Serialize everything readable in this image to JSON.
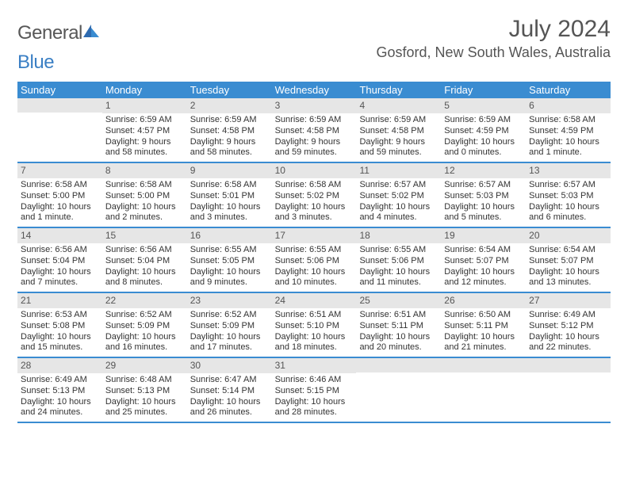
{
  "logo": {
    "text1": "General",
    "text2": "Blue"
  },
  "header": {
    "month_title": "July 2024",
    "location": "Gosford, New South Wales, Australia"
  },
  "colors": {
    "accent": "#3a8cd1",
    "header_text": "#ffffff",
    "date_bar": "#e6e6e6",
    "body_text": "#333333",
    "title_text": "#555555"
  },
  "weekdays": [
    "Sunday",
    "Monday",
    "Tuesday",
    "Wednesday",
    "Thursday",
    "Friday",
    "Saturday"
  ],
  "weeks": [
    [
      {
        "num": "",
        "sunrise": "",
        "sunset": "",
        "day1": "",
        "day2": ""
      },
      {
        "num": "1",
        "sunrise": "Sunrise: 6:59 AM",
        "sunset": "Sunset: 4:57 PM",
        "day1": "Daylight: 9 hours",
        "day2": "and 58 minutes."
      },
      {
        "num": "2",
        "sunrise": "Sunrise: 6:59 AM",
        "sunset": "Sunset: 4:58 PM",
        "day1": "Daylight: 9 hours",
        "day2": "and 58 minutes."
      },
      {
        "num": "3",
        "sunrise": "Sunrise: 6:59 AM",
        "sunset": "Sunset: 4:58 PM",
        "day1": "Daylight: 9 hours",
        "day2": "and 59 minutes."
      },
      {
        "num": "4",
        "sunrise": "Sunrise: 6:59 AM",
        "sunset": "Sunset: 4:58 PM",
        "day1": "Daylight: 9 hours",
        "day2": "and 59 minutes."
      },
      {
        "num": "5",
        "sunrise": "Sunrise: 6:59 AM",
        "sunset": "Sunset: 4:59 PM",
        "day1": "Daylight: 10 hours",
        "day2": "and 0 minutes."
      },
      {
        "num": "6",
        "sunrise": "Sunrise: 6:58 AM",
        "sunset": "Sunset: 4:59 PM",
        "day1": "Daylight: 10 hours",
        "day2": "and 1 minute."
      }
    ],
    [
      {
        "num": "7",
        "sunrise": "Sunrise: 6:58 AM",
        "sunset": "Sunset: 5:00 PM",
        "day1": "Daylight: 10 hours",
        "day2": "and 1 minute."
      },
      {
        "num": "8",
        "sunrise": "Sunrise: 6:58 AM",
        "sunset": "Sunset: 5:00 PM",
        "day1": "Daylight: 10 hours",
        "day2": "and 2 minutes."
      },
      {
        "num": "9",
        "sunrise": "Sunrise: 6:58 AM",
        "sunset": "Sunset: 5:01 PM",
        "day1": "Daylight: 10 hours",
        "day2": "and 3 minutes."
      },
      {
        "num": "10",
        "sunrise": "Sunrise: 6:58 AM",
        "sunset": "Sunset: 5:02 PM",
        "day1": "Daylight: 10 hours",
        "day2": "and 3 minutes."
      },
      {
        "num": "11",
        "sunrise": "Sunrise: 6:57 AM",
        "sunset": "Sunset: 5:02 PM",
        "day1": "Daylight: 10 hours",
        "day2": "and 4 minutes."
      },
      {
        "num": "12",
        "sunrise": "Sunrise: 6:57 AM",
        "sunset": "Sunset: 5:03 PM",
        "day1": "Daylight: 10 hours",
        "day2": "and 5 minutes."
      },
      {
        "num": "13",
        "sunrise": "Sunrise: 6:57 AM",
        "sunset": "Sunset: 5:03 PM",
        "day1": "Daylight: 10 hours",
        "day2": "and 6 minutes."
      }
    ],
    [
      {
        "num": "14",
        "sunrise": "Sunrise: 6:56 AM",
        "sunset": "Sunset: 5:04 PM",
        "day1": "Daylight: 10 hours",
        "day2": "and 7 minutes."
      },
      {
        "num": "15",
        "sunrise": "Sunrise: 6:56 AM",
        "sunset": "Sunset: 5:04 PM",
        "day1": "Daylight: 10 hours",
        "day2": "and 8 minutes."
      },
      {
        "num": "16",
        "sunrise": "Sunrise: 6:55 AM",
        "sunset": "Sunset: 5:05 PM",
        "day1": "Daylight: 10 hours",
        "day2": "and 9 minutes."
      },
      {
        "num": "17",
        "sunrise": "Sunrise: 6:55 AM",
        "sunset": "Sunset: 5:06 PM",
        "day1": "Daylight: 10 hours",
        "day2": "and 10 minutes."
      },
      {
        "num": "18",
        "sunrise": "Sunrise: 6:55 AM",
        "sunset": "Sunset: 5:06 PM",
        "day1": "Daylight: 10 hours",
        "day2": "and 11 minutes."
      },
      {
        "num": "19",
        "sunrise": "Sunrise: 6:54 AM",
        "sunset": "Sunset: 5:07 PM",
        "day1": "Daylight: 10 hours",
        "day2": "and 12 minutes."
      },
      {
        "num": "20",
        "sunrise": "Sunrise: 6:54 AM",
        "sunset": "Sunset: 5:07 PM",
        "day1": "Daylight: 10 hours",
        "day2": "and 13 minutes."
      }
    ],
    [
      {
        "num": "21",
        "sunrise": "Sunrise: 6:53 AM",
        "sunset": "Sunset: 5:08 PM",
        "day1": "Daylight: 10 hours",
        "day2": "and 15 minutes."
      },
      {
        "num": "22",
        "sunrise": "Sunrise: 6:52 AM",
        "sunset": "Sunset: 5:09 PM",
        "day1": "Daylight: 10 hours",
        "day2": "and 16 minutes."
      },
      {
        "num": "23",
        "sunrise": "Sunrise: 6:52 AM",
        "sunset": "Sunset: 5:09 PM",
        "day1": "Daylight: 10 hours",
        "day2": "and 17 minutes."
      },
      {
        "num": "24",
        "sunrise": "Sunrise: 6:51 AM",
        "sunset": "Sunset: 5:10 PM",
        "day1": "Daylight: 10 hours",
        "day2": "and 18 minutes."
      },
      {
        "num": "25",
        "sunrise": "Sunrise: 6:51 AM",
        "sunset": "Sunset: 5:11 PM",
        "day1": "Daylight: 10 hours",
        "day2": "and 20 minutes."
      },
      {
        "num": "26",
        "sunrise": "Sunrise: 6:50 AM",
        "sunset": "Sunset: 5:11 PM",
        "day1": "Daylight: 10 hours",
        "day2": "and 21 minutes."
      },
      {
        "num": "27",
        "sunrise": "Sunrise: 6:49 AM",
        "sunset": "Sunset: 5:12 PM",
        "day1": "Daylight: 10 hours",
        "day2": "and 22 minutes."
      }
    ],
    [
      {
        "num": "28",
        "sunrise": "Sunrise: 6:49 AM",
        "sunset": "Sunset: 5:13 PM",
        "day1": "Daylight: 10 hours",
        "day2": "and 24 minutes."
      },
      {
        "num": "29",
        "sunrise": "Sunrise: 6:48 AM",
        "sunset": "Sunset: 5:13 PM",
        "day1": "Daylight: 10 hours",
        "day2": "and 25 minutes."
      },
      {
        "num": "30",
        "sunrise": "Sunrise: 6:47 AM",
        "sunset": "Sunset: 5:14 PM",
        "day1": "Daylight: 10 hours",
        "day2": "and 26 minutes."
      },
      {
        "num": "31",
        "sunrise": "Sunrise: 6:46 AM",
        "sunset": "Sunset: 5:15 PM",
        "day1": "Daylight: 10 hours",
        "day2": "and 28 minutes."
      },
      {
        "num": "",
        "sunrise": "",
        "sunset": "",
        "day1": "",
        "day2": ""
      },
      {
        "num": "",
        "sunrise": "",
        "sunset": "",
        "day1": "",
        "day2": ""
      },
      {
        "num": "",
        "sunrise": "",
        "sunset": "",
        "day1": "",
        "day2": ""
      }
    ]
  ]
}
